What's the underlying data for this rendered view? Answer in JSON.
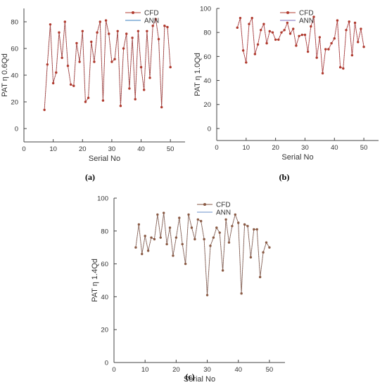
{
  "chart_data": [
    {
      "type": "line",
      "panel_label": "(a)",
      "xlabel": "Serial No",
      "ylabel": "PAT η 0.6Qd",
      "xlim": [
        0,
        55
      ],
      "ylim": [
        -10,
        90
      ],
      "xticks": [
        0,
        10,
        20,
        30,
        40,
        50
      ],
      "yticks": [
        0,
        20,
        40,
        60,
        80
      ],
      "grid": false,
      "legend_position": "top-right",
      "x": [
        7,
        8,
        9,
        10,
        11,
        12,
        13,
        14,
        15,
        16,
        17,
        18,
        19,
        20,
        21,
        22,
        23,
        24,
        25,
        26,
        27,
        28,
        29,
        30,
        31,
        32,
        33,
        34,
        35,
        36,
        37,
        38,
        39,
        40,
        41,
        42,
        43,
        44,
        45,
        46,
        47,
        48,
        49,
        50
      ],
      "series": [
        {
          "name": "CFD",
          "color": "#b03a2e",
          "marker": "circle",
          "values": [
            14,
            48,
            78,
            34,
            42,
            72,
            53,
            80,
            47,
            33,
            32,
            64,
            50,
            73,
            20,
            23,
            65,
            50,
            72,
            80,
            21,
            81,
            71,
            50,
            52,
            73,
            17,
            60,
            71,
            30,
            68,
            22,
            73,
            46,
            29,
            73,
            38,
            77,
            82,
            67,
            16,
            77,
            76,
            46
          ]
        },
        {
          "name": "ANN",
          "color": "#3a7fbf",
          "marker": "none",
          "values": [
            14,
            48,
            78,
            34,
            42,
            72,
            53,
            80,
            47,
            33,
            32,
            64,
            50,
            73,
            20,
            23,
            65,
            50,
            72,
            80,
            21,
            81,
            71,
            50,
            52,
            73,
            17,
            60,
            71,
            30,
            68,
            22,
            73,
            46,
            29,
            73,
            38,
            77,
            82,
            67,
            16,
            77,
            76,
            46
          ]
        }
      ]
    },
    {
      "type": "line",
      "panel_label": "(b)",
      "xlabel": "Serial No",
      "ylabel": "PAT η 1.0Qd",
      "xlim": [
        0,
        55
      ],
      "ylim": [
        -10,
        100
      ],
      "xticks": [
        0,
        10,
        20,
        30,
        40,
        50
      ],
      "yticks": [
        0,
        20,
        40,
        60,
        80,
        100
      ],
      "grid": false,
      "legend_position": "top-right",
      "x": [
        7,
        8,
        9,
        10,
        11,
        12,
        13,
        14,
        15,
        16,
        17,
        18,
        19,
        20,
        21,
        22,
        23,
        24,
        25,
        26,
        27,
        28,
        29,
        30,
        31,
        32,
        33,
        34,
        35,
        36,
        37,
        38,
        39,
        40,
        41,
        42,
        43,
        44,
        45,
        46,
        47,
        48,
        49,
        50
      ],
      "series": [
        {
          "name": "CFD",
          "color": "#b03a2e",
          "marker": "circle",
          "values": [
            84,
            92,
            65,
            55,
            87,
            92,
            62,
            70,
            82,
            87,
            71,
            81,
            80,
            74,
            74,
            80,
            82,
            88,
            79,
            83,
            69,
            77,
            78,
            78,
            64,
            85,
            93,
            59,
            76,
            46,
            66,
            66,
            71,
            75,
            90,
            51,
            50,
            82,
            89,
            61,
            88,
            72,
            83,
            68
          ]
        },
        {
          "name": "ANN",
          "color": "#7b68b8",
          "marker": "none",
          "values": [
            84,
            92,
            65,
            55,
            87,
            92,
            62,
            70,
            82,
            87,
            71,
            81,
            80,
            74,
            74,
            80,
            82,
            88,
            79,
            83,
            69,
            77,
            78,
            78,
            64,
            85,
            93,
            59,
            76,
            46,
            66,
            66,
            71,
            75,
            90,
            51,
            50,
            82,
            89,
            61,
            88,
            72,
            83,
            68
          ]
        }
      ]
    },
    {
      "type": "line",
      "panel_label": "(c)",
      "xlabel": "Serial No",
      "ylabel": "PAT η 1.4Qd",
      "xlim": [
        0,
        55
      ],
      "ylim": [
        0,
        100
      ],
      "xticks": [
        0,
        10,
        20,
        30,
        40,
        50
      ],
      "yticks": [
        0,
        20,
        40,
        60,
        80,
        100
      ],
      "grid": false,
      "legend_position": "top-right",
      "x": [
        7,
        8,
        9,
        10,
        11,
        12,
        13,
        14,
        15,
        16,
        17,
        18,
        19,
        20,
        21,
        22,
        23,
        24,
        25,
        26,
        27,
        28,
        29,
        30,
        31,
        32,
        33,
        34,
        35,
        36,
        37,
        38,
        39,
        40,
        41,
        42,
        43,
        44,
        45,
        46,
        47,
        48,
        49,
        50
      ],
      "series": [
        {
          "name": "CFD",
          "color": "#8a5a44",
          "marker": "circle",
          "values": [
            70,
            84,
            66,
            77,
            68,
            76,
            75,
            90,
            76,
            91,
            72,
            82,
            65,
            76,
            88,
            72,
            60,
            90,
            82,
            75,
            87,
            86,
            75,
            41,
            71,
            76,
            82,
            79,
            56,
            87,
            73,
            83,
            90,
            85,
            42,
            84,
            83,
            64,
            81,
            81,
            52,
            67,
            73,
            70
          ]
        },
        {
          "name": "ANN",
          "color": "#6a8fc8",
          "marker": "none",
          "values": [
            70,
            84,
            66,
            77,
            68,
            76,
            75,
            90,
            76,
            91,
            72,
            82,
            65,
            76,
            88,
            72,
            60,
            90,
            82,
            75,
            87,
            86,
            75,
            41,
            71,
            76,
            82,
            79,
            56,
            87,
            73,
            83,
            90,
            85,
            42,
            84,
            83,
            64,
            81,
            81,
            52,
            67,
            73,
            70
          ]
        }
      ]
    }
  ]
}
